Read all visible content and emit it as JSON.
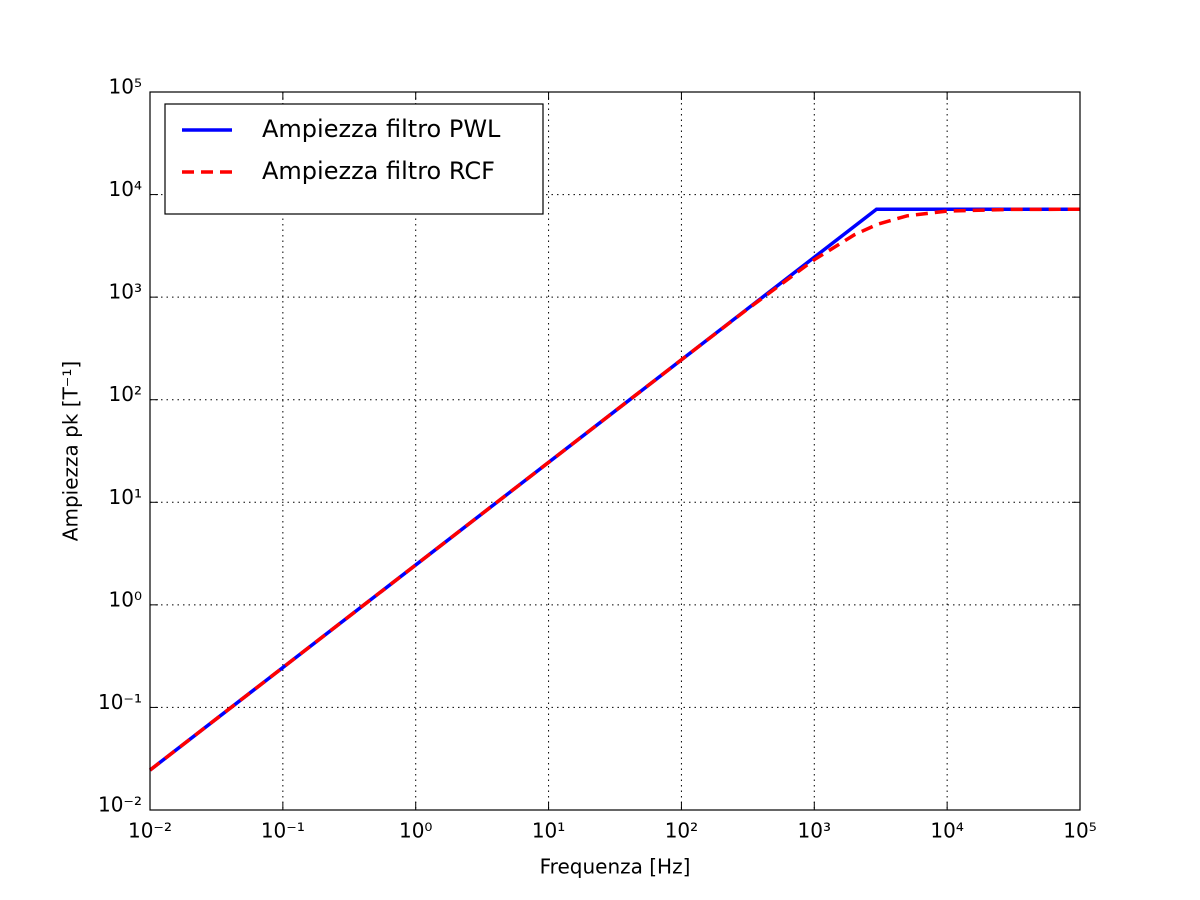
{
  "chart_data": {
    "type": "line",
    "xlabel": "Frequenza [Hz]",
    "ylabel": "Ampiezza pk [T⁻¹]",
    "xscale": "log",
    "yscale": "log",
    "grid": true,
    "legend": "upper left",
    "xlim": [
      0.01,
      100000
    ],
    "ylim": [
      0.01,
      100000
    ],
    "xticks": [
      {
        "value": 0.01,
        "label": "10⁻²"
      },
      {
        "value": 0.1,
        "label": "10⁻¹"
      },
      {
        "value": 1,
        "label": "10⁰"
      },
      {
        "value": 10,
        "label": "10¹"
      },
      {
        "value": 100,
        "label": "10²"
      },
      {
        "value": 1000,
        "label": "10³"
      },
      {
        "value": 10000,
        "label": "10⁴"
      },
      {
        "value": 100000,
        "label": "10⁵"
      }
    ],
    "yticks": [
      {
        "value": 0.01,
        "label": "10⁻²"
      },
      {
        "value": 0.1,
        "label": "10⁻¹"
      },
      {
        "value": 1,
        "label": "10⁰"
      },
      {
        "value": 10,
        "label": "10¹"
      },
      {
        "value": 100,
        "label": "10²"
      },
      {
        "value": 1000,
        "label": "10³"
      },
      {
        "value": 10000,
        "label": "10⁴"
      },
      {
        "value": 100000,
        "label": "10⁵"
      }
    ],
    "series": [
      {
        "name": "Ampiezza filtro PWL",
        "color": "#0000ff",
        "dash": "solid",
        "x": [
          0.01,
          2940,
          100000
        ],
        "values": [
          0.0245,
          7200,
          7200
        ]
      },
      {
        "name": "Ampiezza filtro RCF",
        "color": "#ff0000",
        "dash": "dashed",
        "x": [
          0.01,
          0.1,
          1,
          10,
          100,
          300,
          1000,
          2000,
          3000,
          5000,
          10000,
          30000,
          100000
        ],
        "values": [
          0.0245,
          0.245,
          2.45,
          24.5,
          245,
          731,
          2318,
          4050,
          5143,
          6207,
          6907,
          7165,
          7197
        ]
      }
    ]
  }
}
